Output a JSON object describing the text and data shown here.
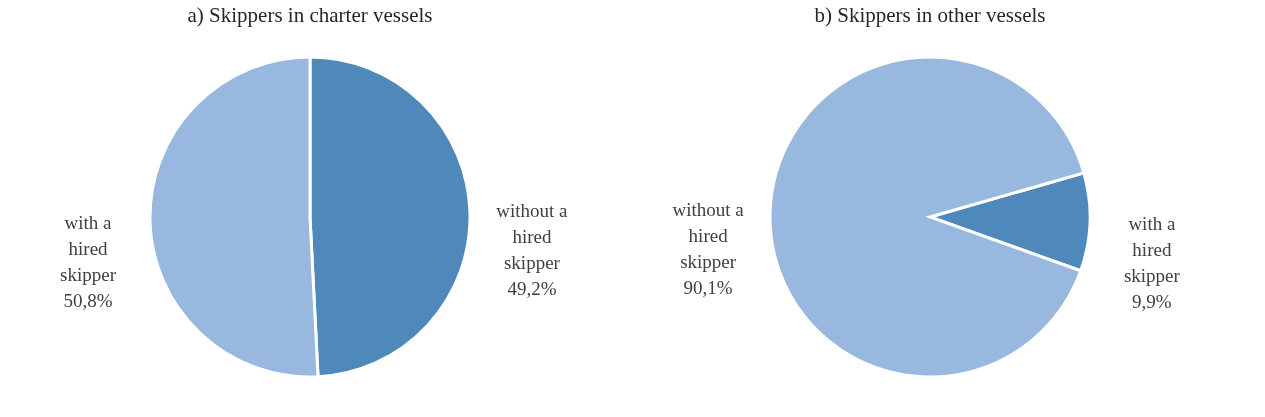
{
  "chart_data": [
    {
      "type": "pie",
      "title": "a) Skippers in charter vessels",
      "categories": [
        "without a hired skipper",
        "with a hired skipper"
      ],
      "values": [
        49.2,
        50.8
      ],
      "colors": [
        "#4f88bb",
        "#99b8df"
      ],
      "value_labels": [
        "49,2%",
        "50,8%"
      ]
    },
    {
      "type": "pie",
      "title": "b) Skippers in other vessels",
      "categories": [
        "with a hired skipper",
        "without a hired skipper"
      ],
      "values": [
        9.9,
        90.1
      ],
      "colors": [
        "#4f88bb",
        "#99b8df"
      ],
      "value_labels": [
        "9,9%",
        "90,1%"
      ]
    }
  ]
}
